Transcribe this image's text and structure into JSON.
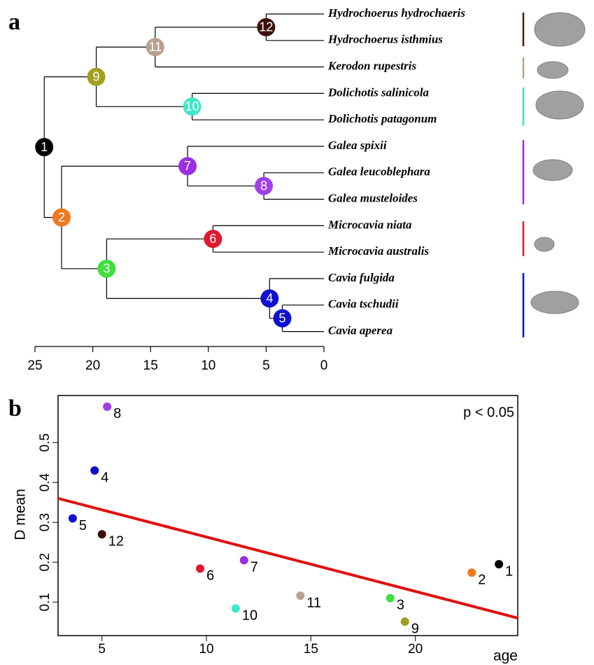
{
  "chart_data": [
    {
      "type": "tree",
      "panel": "a",
      "leaves": [
        "Hydrochoerus hydrochaeris",
        "Hydrochoerus isthmius",
        "Kerodon rupestris",
        "Dolichotis salinicola",
        "Dolichotis patagonum",
        "Galea spixii",
        "Galea leucoblephara",
        "Galea musteloides",
        "Microcavia niata",
        "Microcavia australis",
        "Cavia fulgida",
        "Cavia tschudii",
        "Cavia aperea"
      ],
      "nodes": [
        {
          "label": "1",
          "age": 24.2,
          "color": "#000000"
        },
        {
          "label": "2",
          "age": 22.7,
          "color": "#f07820"
        },
        {
          "label": "3",
          "age": 18.8,
          "color": "#40e040"
        },
        {
          "label": "4",
          "age": 4.7,
          "color": "#1010d0"
        },
        {
          "label": "5",
          "age": 3.6,
          "color": "#1010d0"
        },
        {
          "label": "6",
          "age": 9.6,
          "color": "#e01830"
        },
        {
          "label": "7",
          "age": 11.8,
          "color": "#9b30e0"
        },
        {
          "label": "8",
          "age": 5.2,
          "color": "#a040e8"
        },
        {
          "label": "9",
          "age": 19.7,
          "color": "#a0a020"
        },
        {
          "label": "10",
          "age": 11.4,
          "color": "#40e8c8"
        },
        {
          "label": "11",
          "age": 14.6,
          "color": "#b8a090"
        },
        {
          "label": "12",
          "age": 5.0,
          "color": "#3a1008"
        }
      ],
      "xlim": [
        25,
        0
      ],
      "xticks": [
        25,
        20,
        15,
        10,
        5,
        0
      ]
    },
    {
      "type": "scatter",
      "panel": "b",
      "annotation": "p < 0.05",
      "xlabel": "age",
      "ylabel": "D mean",
      "point_labels": [
        "1",
        "2",
        "3",
        "4",
        "5",
        "6",
        "7",
        "8",
        "9",
        "10",
        "11",
        "12"
      ],
      "x": [
        24.0,
        22.7,
        18.8,
        4.65,
        3.6,
        9.7,
        11.8,
        5.25,
        19.5,
        11.4,
        14.5,
        5.0
      ],
      "y": [
        0.195,
        0.174,
        0.11,
        0.43,
        0.31,
        0.184,
        0.205,
        0.59,
        0.051,
        0.084,
        0.116,
        0.27
      ],
      "colors": [
        "#000000",
        "#f07820",
        "#40e040",
        "#1010d0",
        "#1010d0",
        "#e01830",
        "#9b30e0",
        "#a040e8",
        "#a0a020",
        "#40e8c8",
        "#b8a090",
        "#3a1008"
      ],
      "fit": {
        "color": "#e01010",
        "x": [
          2.9,
          24.9
        ],
        "y": [
          0.36,
          0.06
        ]
      },
      "xlim": [
        2.9,
        24.9
      ],
      "ylim": [
        0.016,
        0.618
      ],
      "xticks": [
        5,
        10,
        15,
        20
      ],
      "yticks": [
        0.1,
        0.2,
        0.3,
        0.4,
        0.5
      ]
    }
  ]
}
